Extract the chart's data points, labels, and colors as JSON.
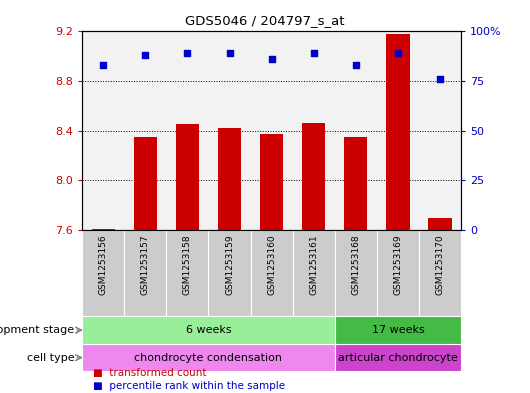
{
  "title": "GDS5046 / 204797_s_at",
  "samples": [
    "GSM1253156",
    "GSM1253157",
    "GSM1253158",
    "GSM1253159",
    "GSM1253160",
    "GSM1253161",
    "GSM1253168",
    "GSM1253169",
    "GSM1253170"
  ],
  "bar_values": [
    7.61,
    8.35,
    8.45,
    8.42,
    8.37,
    8.46,
    8.35,
    9.18,
    7.7
  ],
  "percentile_values": [
    83,
    88,
    89,
    89,
    86,
    89,
    83,
    89,
    76
  ],
  "bar_color": "#cc0000",
  "percentile_color": "#0000cc",
  "ylim_left": [
    7.6,
    9.2
  ],
  "ylim_right": [
    0,
    100
  ],
  "yticks_left": [
    7.6,
    8.0,
    8.4,
    8.8,
    9.2
  ],
  "yticks_right": [
    0,
    25,
    50,
    75,
    100
  ],
  "ytick_labels_right": [
    "0",
    "25",
    "50",
    "75",
    "100%"
  ],
  "grid_values": [
    7.6,
    8.0,
    8.4,
    8.8
  ],
  "development_stage_groups": [
    {
      "label": "6 weeks",
      "start": 0,
      "end": 6,
      "color": "#99ee99"
    },
    {
      "label": "17 weeks",
      "start": 6,
      "end": 9,
      "color": "#44bb44"
    }
  ],
  "cell_type_groups": [
    {
      "label": "chondrocyte condensation",
      "start": 0,
      "end": 6,
      "color": "#ee88ee"
    },
    {
      "label": "articular chondrocyte",
      "start": 6,
      "end": 9,
      "color": "#cc44cc"
    }
  ],
  "row_label_dev": "development stage",
  "row_label_cell": "cell type",
  "legend_bar_label": "transformed count",
  "legend_pct_label": "percentile rank within the sample",
  "tick_color_left": "#cc0000",
  "tick_color_right": "#0000cc"
}
